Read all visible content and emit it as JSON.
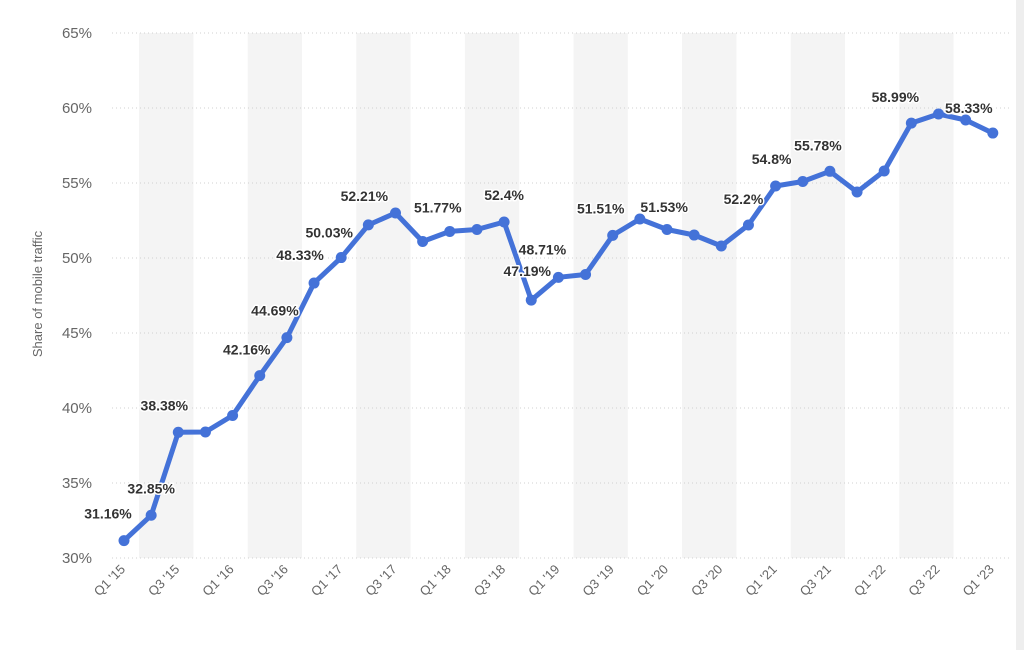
{
  "chart_data": {
    "type": "line",
    "title": "",
    "xlabel": "",
    "ylabel": "Share of mobile traffic",
    "ylim": [
      30,
      65
    ],
    "yticks": [
      30,
      35,
      40,
      45,
      50,
      55,
      60,
      65
    ],
    "ytick_labels": [
      "30%",
      "35%",
      "40%",
      "45%",
      "50%",
      "55%",
      "60%",
      "65%"
    ],
    "grid": true,
    "legend": "none",
    "color": "#4472d8",
    "x": [
      "Q1 '15",
      "Q2 '15",
      "Q3 '15",
      "Q4 '15",
      "Q1 '16",
      "Q2 '16",
      "Q3 '16",
      "Q4 '16",
      "Q1 '17",
      "Q2 '17",
      "Q3 '17",
      "Q4 '17",
      "Q1 '18",
      "Q2 '18",
      "Q3 '18",
      "Q4 '18",
      "Q1 '19",
      "Q2 '19",
      "Q3 '19",
      "Q4 '19",
      "Q1 '20",
      "Q2 '20",
      "Q3 '20",
      "Q4 '20",
      "Q1 '21",
      "Q2 '21",
      "Q3 '21",
      "Q4 '21",
      "Q1 '22",
      "Q2 '22",
      "Q3 '22",
      "Q4 '22",
      "Q1 '23"
    ],
    "xtick_labels": [
      "Q1 '15",
      "Q3 '15",
      "Q1 '16",
      "Q3 '16",
      "Q1 '17",
      "Q3 '17",
      "Q1 '18",
      "Q3 '18",
      "Q1 '19",
      "Q3 '19",
      "Q1 '20",
      "Q3 '20",
      "Q1 '21",
      "Q3 '21",
      "Q1 '22",
      "Q3 '22",
      "Q1 '23"
    ],
    "series": [
      {
        "values": [
          31.16,
          32.85,
          38.38,
          38.4,
          39.5,
          42.16,
          44.69,
          48.33,
          50.03,
          52.21,
          53.0,
          51.1,
          51.77,
          51.9,
          52.4,
          47.19,
          48.71,
          48.9,
          51.51,
          52.6,
          51.9,
          51.53,
          50.8,
          52.2,
          54.8,
          55.1,
          55.78,
          54.4,
          55.8,
          58.99,
          59.6,
          59.2,
          58.33
        ],
        "labels": [
          "31.16%",
          "32.85%",
          "38.38%",
          "",
          "",
          "42.16%",
          "44.69%",
          "48.33%",
          "50.03%",
          "52.21%",
          "",
          "",
          "51.77%",
          "",
          "52.4%",
          "47.19%",
          "48.71%",
          "",
          "51.51%",
          "",
          "",
          "51.53%",
          "",
          "52.2%",
          "54.8%",
          "",
          "55.78%",
          "",
          "",
          "58.99%",
          "",
          "",
          "58.33%"
        ]
      }
    ]
  }
}
